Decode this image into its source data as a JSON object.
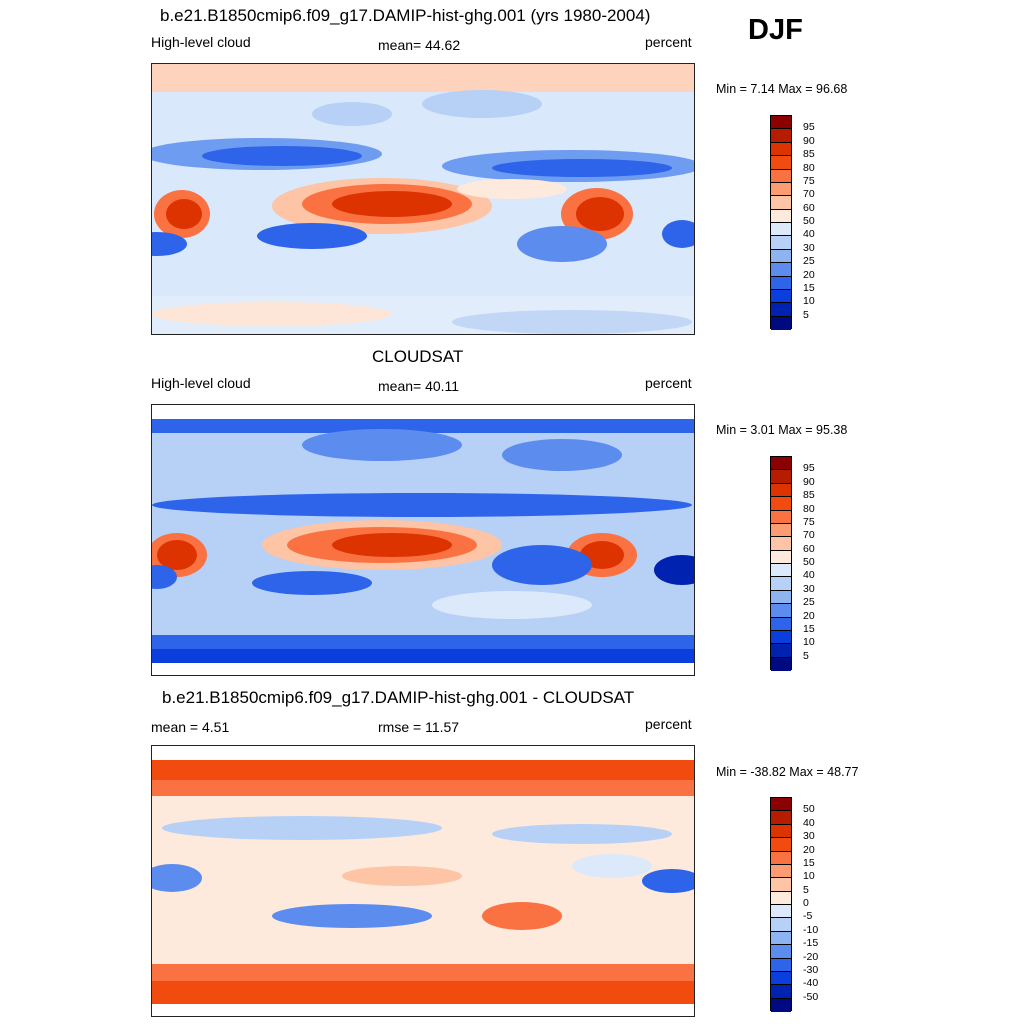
{
  "season": "DJF",
  "panels": [
    {
      "title": "b.e21.B1850cmip6.f09_g17.DAMIP-hist-ghg.001 (yrs 1980-2004)",
      "left_label": "High-level cloud",
      "center_label": "mean=  44.62",
      "right_label": "percent",
      "minmax": "Min =   7.14 Max =  96.68",
      "legend": {
        "labels": [
          "95",
          "90",
          "85",
          "80",
          "75",
          "70",
          "60",
          "50",
          "40",
          "30",
          "25",
          "20",
          "15",
          "10",
          "5"
        ],
        "colors": [
          "#8b0000",
          "#b51c00",
          "#dd3300",
          "#f24b0f",
          "#fa7242",
          "#fd9c72",
          "#fdc4a5",
          "#fdeadd",
          "#dbe9fb",
          "#b6d0f6",
          "#8db4f1",
          "#5b8cee",
          "#2d64ea",
          "#0b3fdd",
          "#0022b0",
          "#000a80"
        ]
      }
    },
    {
      "title": "CLOUDSAT",
      "left_label": "High-level cloud",
      "center_label": "mean=  40.11",
      "right_label": "percent",
      "minmax": "Min =   3.01 Max =  95.38",
      "legend": {
        "labels": [
          "95",
          "90",
          "85",
          "80",
          "75",
          "70",
          "60",
          "50",
          "40",
          "30",
          "25",
          "20",
          "15",
          "10",
          "5"
        ],
        "colors": [
          "#8b0000",
          "#b51c00",
          "#dd3300",
          "#f24b0f",
          "#fa7242",
          "#fd9c72",
          "#fdc4a5",
          "#fdeadd",
          "#dbe9fb",
          "#b6d0f6",
          "#8db4f1",
          "#5b8cee",
          "#2d64ea",
          "#0b3fdd",
          "#0022b0",
          "#000a80"
        ]
      }
    },
    {
      "title": "b.e21.B1850cmip6.f09_g17.DAMIP-hist-ghg.001 - CLOUDSAT",
      "left_label": "mean =   4.51",
      "center_label": "rmse =  11.57",
      "right_label": "percent",
      "minmax": "Min = -38.82 Max =  48.77",
      "legend": {
        "labels": [
          "50",
          "40",
          "30",
          "20",
          "15",
          "10",
          "5",
          "0",
          "-5",
          "-10",
          "-15",
          "-20",
          "-30",
          "-40",
          "-50"
        ],
        "colors": [
          "#8b0000",
          "#b51c00",
          "#dd3300",
          "#f24b0f",
          "#fa7242",
          "#fd9c72",
          "#fdc4a5",
          "#fdeadd",
          "#dbe9fb",
          "#b6d0f6",
          "#8db4f1",
          "#5b8cee",
          "#2d64ea",
          "#0b3fdd",
          "#0022b0",
          "#000a80"
        ]
      }
    }
  ]
}
